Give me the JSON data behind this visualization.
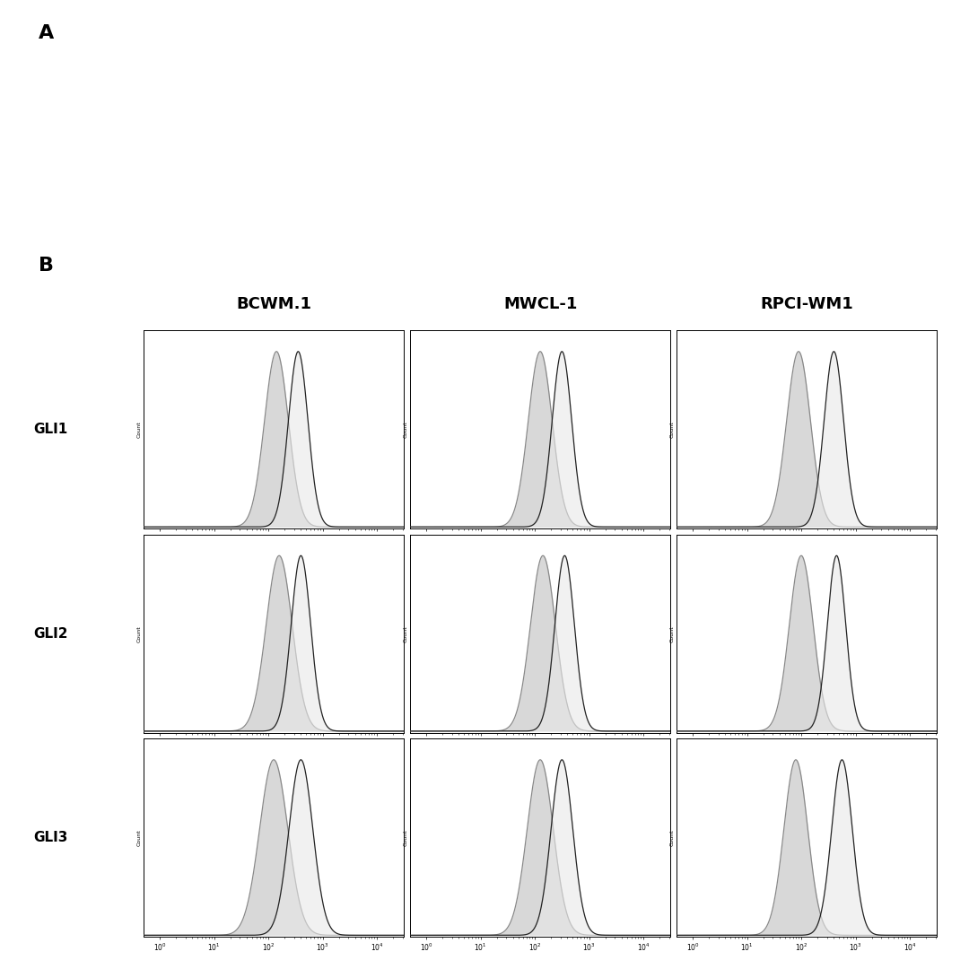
{
  "panel_label_A": "A",
  "panel_label_B": "B",
  "col_labels": [
    "BCWM.1",
    "MWCL-1",
    "RPCI-WM1"
  ],
  "row_labels": [
    "GLI1",
    "GLI2",
    "GLI3"
  ],
  "background_color": "#ffffff",
  "fill_color_iso": "#d8d8d8",
  "fill_color_ab": "#e8e8e8",
  "line_color_iso": "#888888",
  "line_color_ab": "#222222",
  "panels": {
    "GLI1_BCWM1": {
      "iso_mu": 2.15,
      "iso_sig": 0.22,
      "ab_mu": 2.55,
      "ab_sig": 0.18
    },
    "GLI1_MWCL1": {
      "iso_mu": 2.1,
      "iso_sig": 0.22,
      "ab_mu": 2.5,
      "ab_sig": 0.18
    },
    "GLI1_RPCI": {
      "iso_mu": 1.95,
      "iso_sig": 0.22,
      "ab_mu": 2.6,
      "ab_sig": 0.18
    },
    "GLI2_BCWM1": {
      "iso_mu": 2.2,
      "iso_sig": 0.24,
      "ab_mu": 2.6,
      "ab_sig": 0.18
    },
    "GLI2_MWCL1": {
      "iso_mu": 2.15,
      "iso_sig": 0.23,
      "ab_mu": 2.55,
      "ab_sig": 0.18
    },
    "GLI2_RPCI": {
      "iso_mu": 2.0,
      "iso_sig": 0.22,
      "ab_mu": 2.65,
      "ab_sig": 0.17
    },
    "GLI3_BCWM1": {
      "iso_mu": 2.1,
      "iso_sig": 0.26,
      "ab_mu": 2.6,
      "ab_sig": 0.22
    },
    "GLI3_MWCL1": {
      "iso_mu": 2.1,
      "iso_sig": 0.24,
      "ab_mu": 2.5,
      "ab_sig": 0.2
    },
    "GLI3_RPCI": {
      "iso_mu": 1.9,
      "iso_sig": 0.22,
      "ab_mu": 2.75,
      "ab_sig": 0.19
    }
  },
  "xlog_min": -0.3,
  "xlog_max": 4.5,
  "tick_positions": [
    0,
    1,
    2,
    3,
    4
  ],
  "tick_labels": [
    "$10^0$",
    "$10^1$",
    "$10^2$",
    "$10^3$",
    "$10^4$"
  ],
  "col_label_fontsize": 13,
  "row_label_fontsize": 11,
  "panel_label_fontsize": 16,
  "ylabel_fontsize": 4.5,
  "tick_fontsize": 5.5
}
